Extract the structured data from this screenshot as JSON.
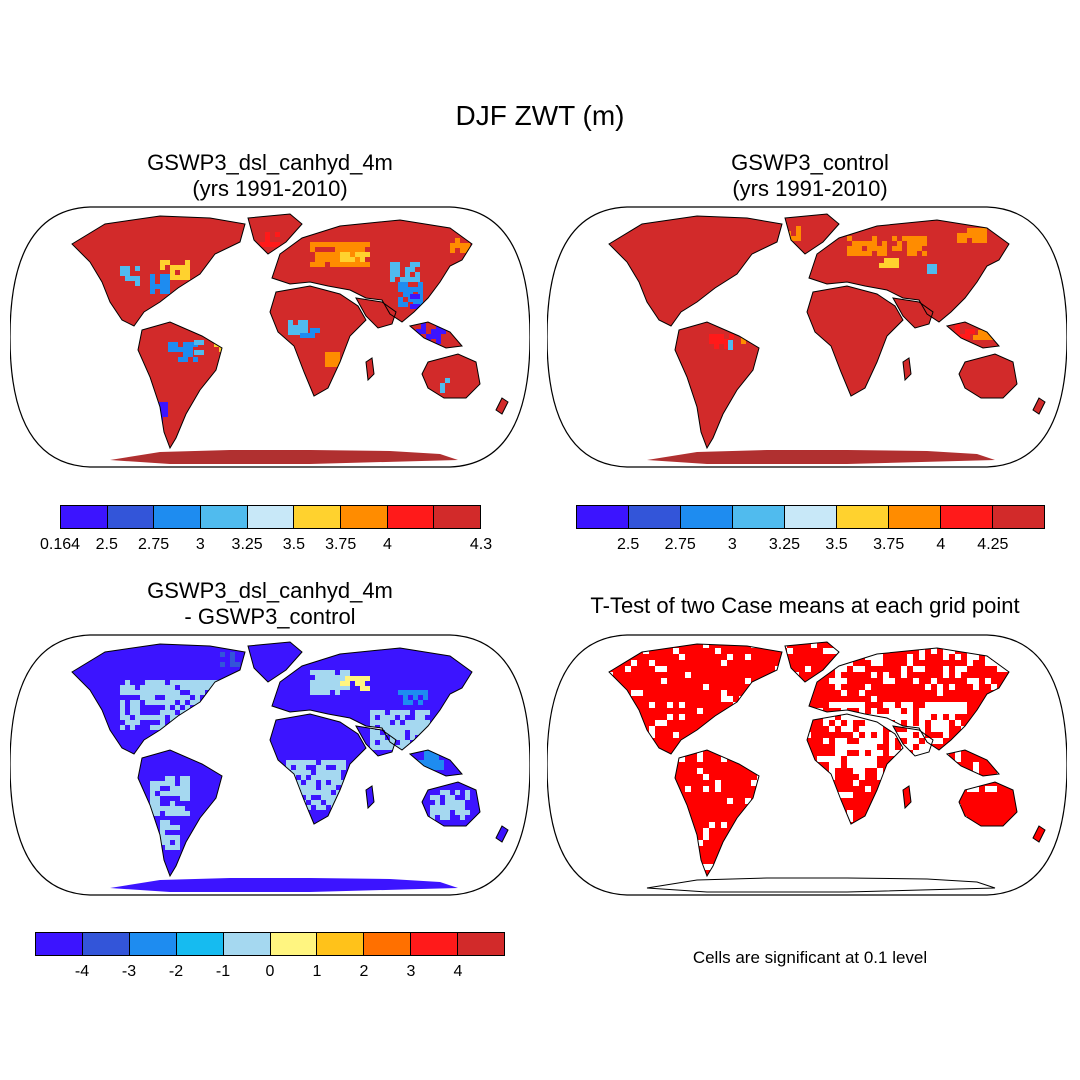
{
  "title": "DJF ZWT (m)",
  "panels": [
    {
      "id": "case",
      "title_line1": "GSWP3_dsl_canhyd_4m",
      "title_line2": "(yrs 1991-2010)",
      "colorbar": {
        "colors": [
          "#3c14ff",
          "#3355d9",
          "#1e8cf0",
          "#50bbee",
          "#c8e8f8",
          "#ffd22e",
          "#ff8c00",
          "#ff1a1a",
          "#d22a2a"
        ],
        "labels": [
          "0.164",
          "2.5",
          "2.75",
          "3",
          "3.25",
          "3.5",
          "3.75",
          "4",
          "4.3"
        ]
      }
    },
    {
      "id": "control",
      "title_line1": "GSWP3_control",
      "title_line2": "(yrs 1991-2010)",
      "colorbar": {
        "colors": [
          "#3c14ff",
          "#3355d9",
          "#1e8cf0",
          "#50bbee",
          "#c8e8f8",
          "#ffd22e",
          "#ff8c00",
          "#ff1a1a",
          "#d22a2a"
        ],
        "labels": [
          "2.5",
          "2.75",
          "3",
          "3.25",
          "3.5",
          "3.75",
          "4",
          "4.25"
        ]
      }
    },
    {
      "id": "difference",
      "title_line1": "GSWP3_dsl_canhyd_4m",
      "title_line2": "- GSWP3_control",
      "colorbar": {
        "colors": [
          "#3c14ff",
          "#3355d9",
          "#1e8cf0",
          "#16bbf0",
          "#a5d8f0",
          "#fff580",
          "#ffc21a",
          "#ff7000",
          "#ff1a1a",
          "#d22a2a"
        ],
        "labels": [
          "-4",
          "-3",
          "-2",
          "-1",
          "0",
          "1",
          "2",
          "3",
          "4"
        ]
      }
    },
    {
      "id": "ttest",
      "title_line1": "T-Test of two Case means at each grid point",
      "note": "Cells are significant at 0.1 level",
      "significant_color": "#ff0000"
    }
  ],
  "map_fills": {
    "case": {
      "land": "#d22a2a",
      "patches": [
        "#ff8c00",
        "#ffd22e",
        "#50bbee",
        "#1e8cf0",
        "#3c14ff",
        "#c8e8f8",
        "#ff1a1a"
      ],
      "antarctica": "#b03030"
    },
    "control": {
      "land": "#d22a2a",
      "patches": [
        "#ff8c00",
        "#ffd22e",
        "#50bbee",
        "#ff1a1a"
      ],
      "antarctica": "#b03030"
    },
    "difference": {
      "land": "#3c14ff",
      "patches": [
        "#a5d8f0",
        "#1e8cf0",
        "#fff580",
        "#3355d9"
      ],
      "antarctica": "#3c14ff"
    },
    "ttest": {
      "land": "#ff0000",
      "gaps": "#ffffff",
      "antarctica": "#ffffff"
    }
  }
}
